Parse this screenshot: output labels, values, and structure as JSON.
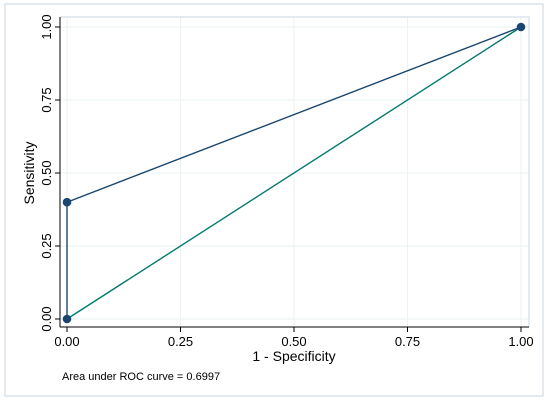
{
  "chart_data": {
    "type": "line",
    "xlabel": "1 - Specificity",
    "ylabel": "Sensitivity",
    "xlim": [
      0,
      1
    ],
    "ylim": [
      0,
      1
    ],
    "x_ticks": [
      "0.00",
      "0.25",
      "0.50",
      "0.75",
      "1.00"
    ],
    "y_ticks": [
      "0.00",
      "0.25",
      "0.50",
      "0.75",
      "1.00"
    ],
    "grid": true,
    "series": [
      {
        "role": "roc-curve",
        "x": [
          0.0,
          0.0,
          1.0
        ],
        "y": [
          0.0,
          0.4,
          1.0
        ],
        "markers": true,
        "color": "#1a476f"
      },
      {
        "role": "reference-line",
        "x": [
          0.0,
          1.0
        ],
        "y": [
          0.0,
          1.0
        ],
        "markers": false,
        "color": "#007a6c"
      }
    ],
    "annotation": "Area under ROC curve = 0.6997"
  },
  "colors": {
    "grid": "#eaf2f3",
    "axis": "#000000",
    "frame": "#c9d6dc"
  }
}
